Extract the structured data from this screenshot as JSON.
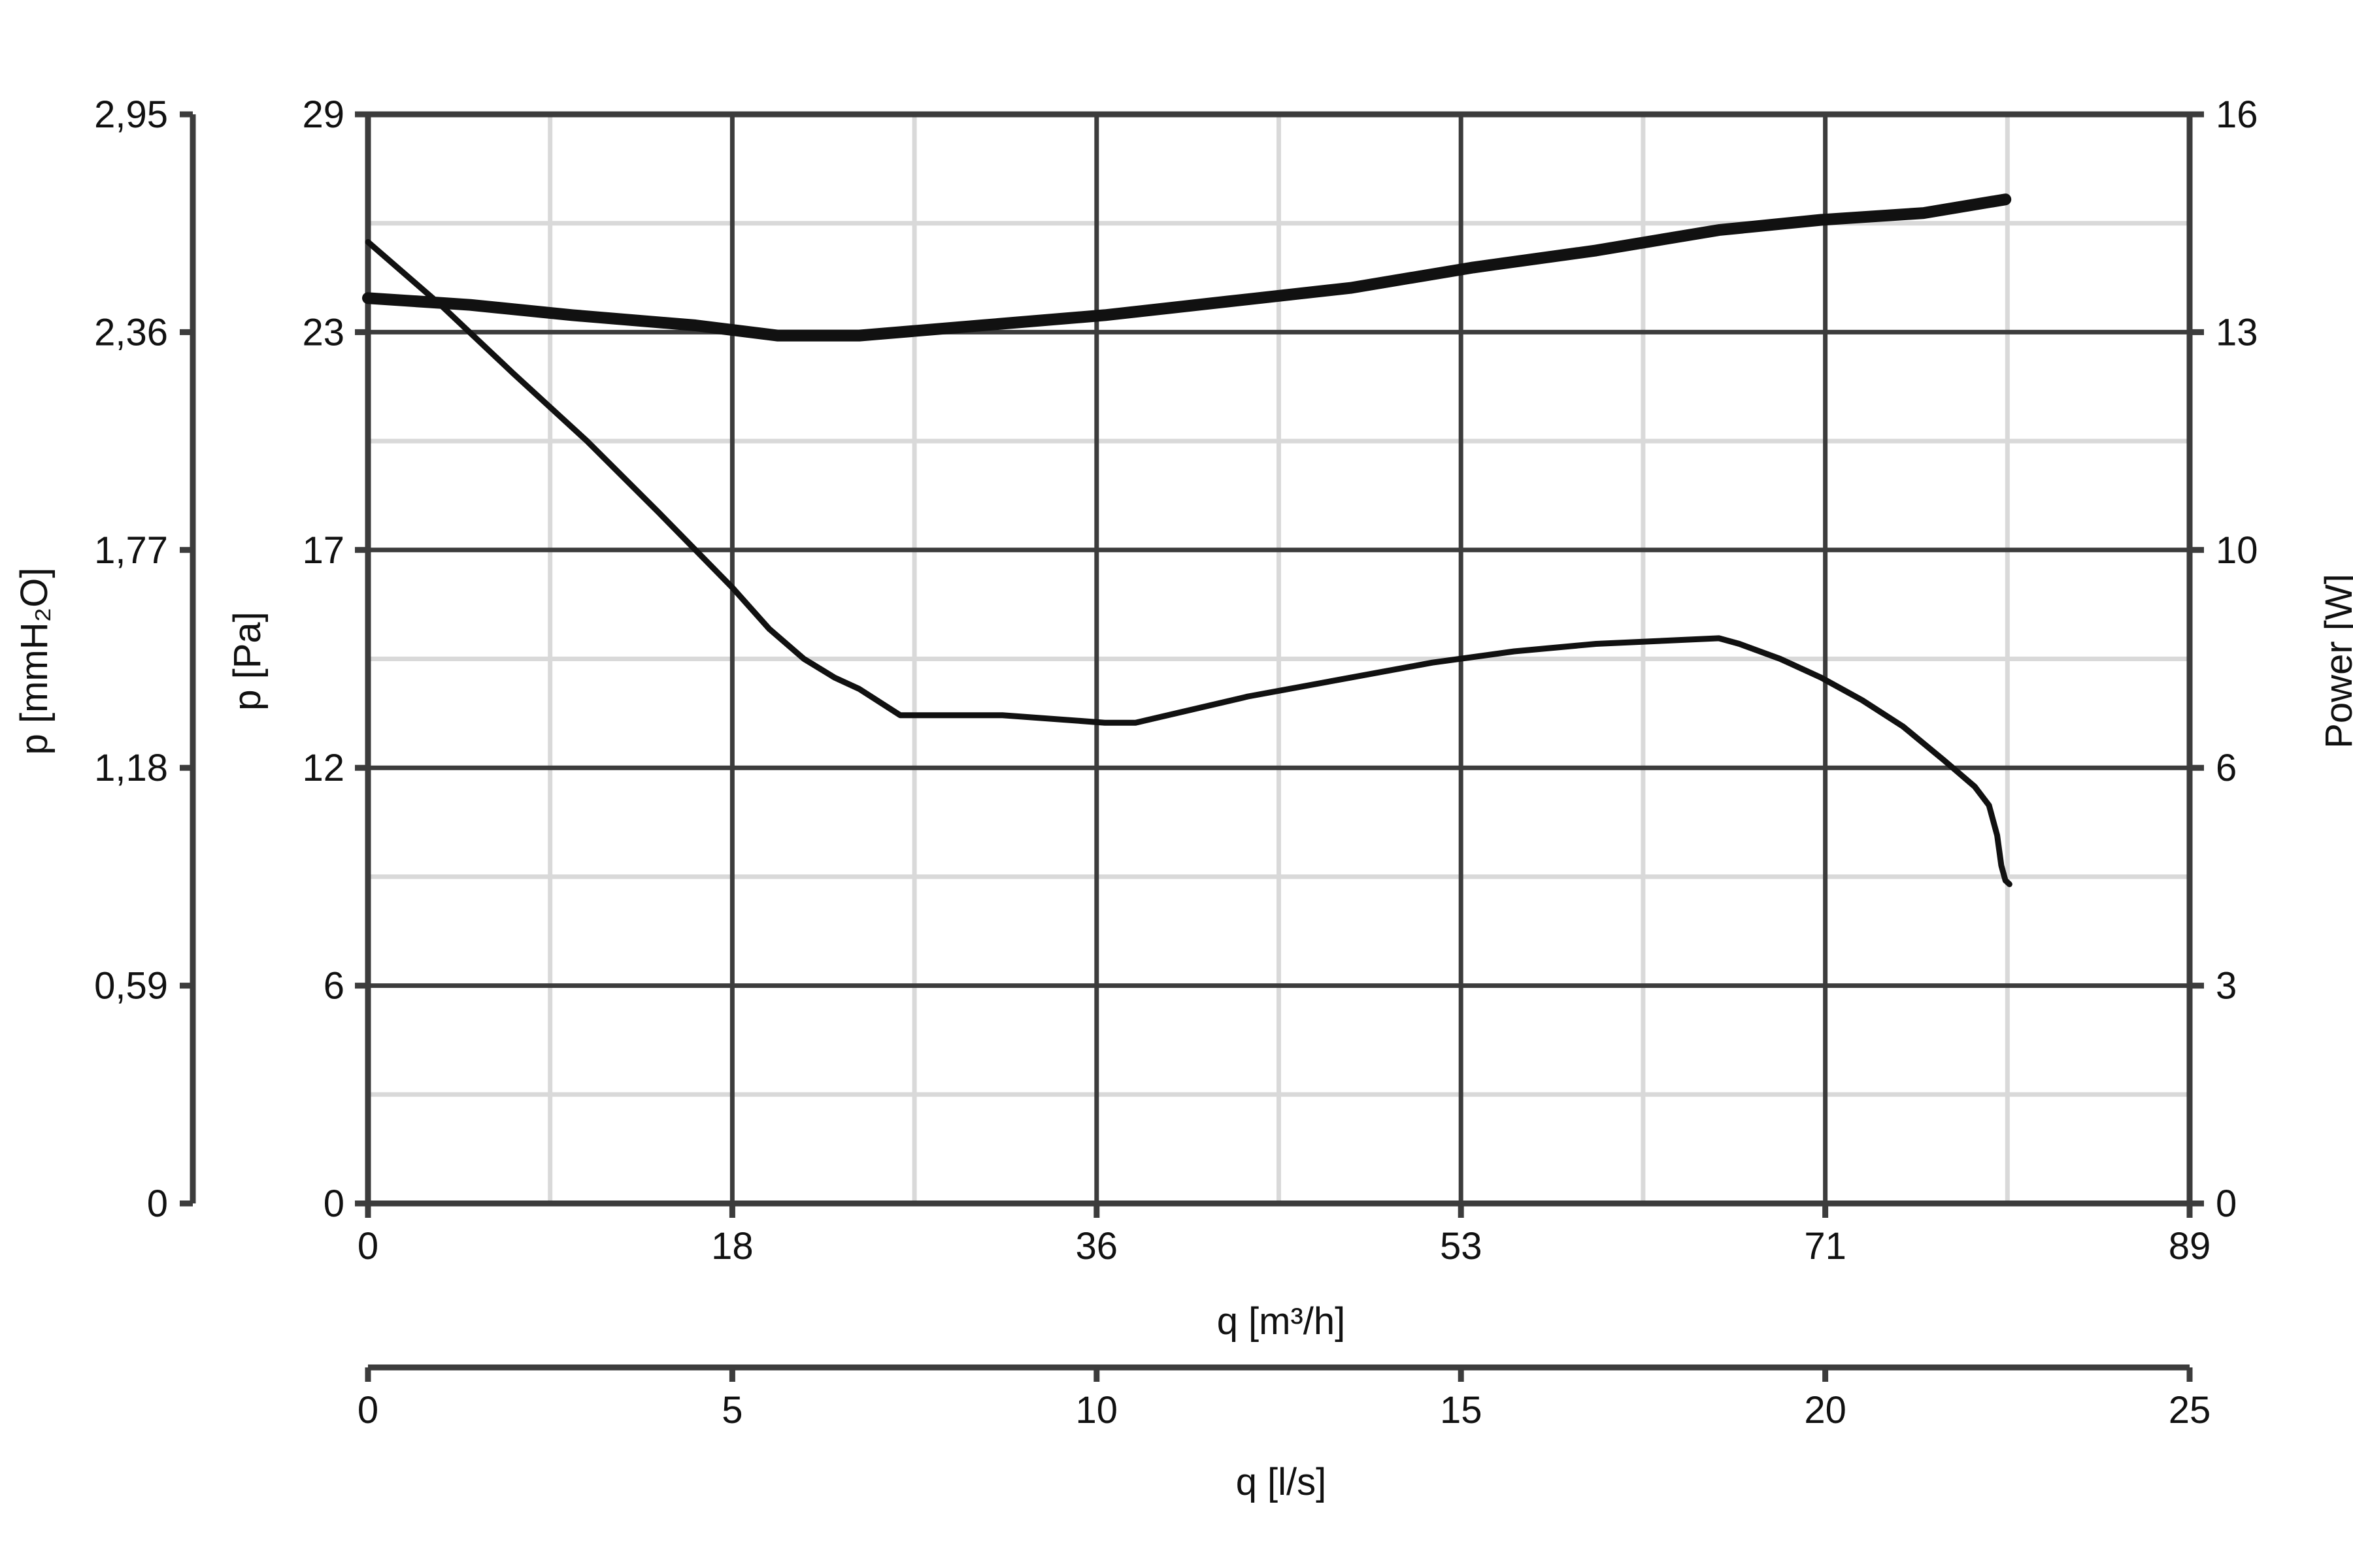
{
  "chart_data": {
    "type": "line",
    "x_axis_primary": {
      "label": "q [m³/h]",
      "range": [
        0,
        89
      ],
      "ticks": [
        "0",
        "18",
        "36",
        "53",
        "71",
        "89"
      ]
    },
    "x_axis_secondary": {
      "label": "q [l/s]",
      "range": [
        0,
        25
      ],
      "ticks": [
        "0",
        "5",
        "10",
        "15",
        "20",
        "25"
      ]
    },
    "y_axis_pa": {
      "label": "p [Pa]",
      "range": [
        0,
        29
      ],
      "ticks": [
        "0",
        "6",
        "12",
        "17",
        "23",
        "29"
      ]
    },
    "y_axis_mmh2o": {
      "label": "p [mmH₂O]",
      "range": [
        0,
        2.95
      ],
      "ticks": [
        "0",
        "0,59",
        "1,18",
        "1,77",
        "2,36",
        "2,95"
      ]
    },
    "y_axis_power": {
      "label": "Power [W]",
      "range": [
        0,
        16
      ],
      "ticks": [
        "0",
        "3",
        "6",
        "10",
        "13",
        "16"
      ]
    },
    "grid": true,
    "series": [
      {
        "axis": "pressure",
        "color": "#111111",
        "points": [
          [
            0,
            25.6
          ],
          [
            3.6,
            23.9
          ],
          [
            7.1,
            22.1
          ],
          [
            10.7,
            20.3
          ],
          [
            14.2,
            18.4
          ],
          [
            17.8,
            16.4
          ],
          [
            19.6,
            15.3
          ],
          [
            21.3,
            14.5
          ],
          [
            22.8,
            14.0
          ],
          [
            24.0,
            13.7
          ],
          [
            26.0,
            13.0
          ],
          [
            31.0,
            13.0
          ],
          [
            36.0,
            12.8
          ],
          [
            37.5,
            12.8
          ],
          [
            43.0,
            13.5
          ],
          [
            48.0,
            14.0
          ],
          [
            52.0,
            14.4
          ],
          [
            56.0,
            14.7
          ],
          [
            60.0,
            14.9
          ],
          [
            64.0,
            15.0
          ],
          [
            66.0,
            15.05
          ],
          [
            67.0,
            14.9
          ],
          [
            69.0,
            14.5
          ],
          [
            71.0,
            14.0
          ],
          [
            73.0,
            13.4
          ],
          [
            75.0,
            12.7
          ],
          [
            77.0,
            11.8
          ],
          [
            78.5,
            11.1
          ],
          [
            79.2,
            10.6
          ],
          [
            79.6,
            9.8
          ],
          [
            79.8,
            9.0
          ],
          [
            80.0,
            8.6
          ],
          [
            80.2,
            8.5
          ]
        ]
      },
      {
        "axis": "power",
        "color": "#111111",
        "points": [
          [
            0,
            13.3
          ],
          [
            5,
            13.2
          ],
          [
            10,
            13.05
          ],
          [
            16,
            12.9
          ],
          [
            20,
            12.75
          ],
          [
            24,
            12.75
          ],
          [
            30,
            12.9
          ],
          [
            36,
            13.05
          ],
          [
            42,
            13.25
          ],
          [
            48,
            13.45
          ],
          [
            54,
            13.75
          ],
          [
            60,
            14.0
          ],
          [
            66,
            14.3
          ],
          [
            71,
            14.45
          ],
          [
            76,
            14.55
          ],
          [
            80,
            14.75
          ]
        ]
      }
    ]
  }
}
